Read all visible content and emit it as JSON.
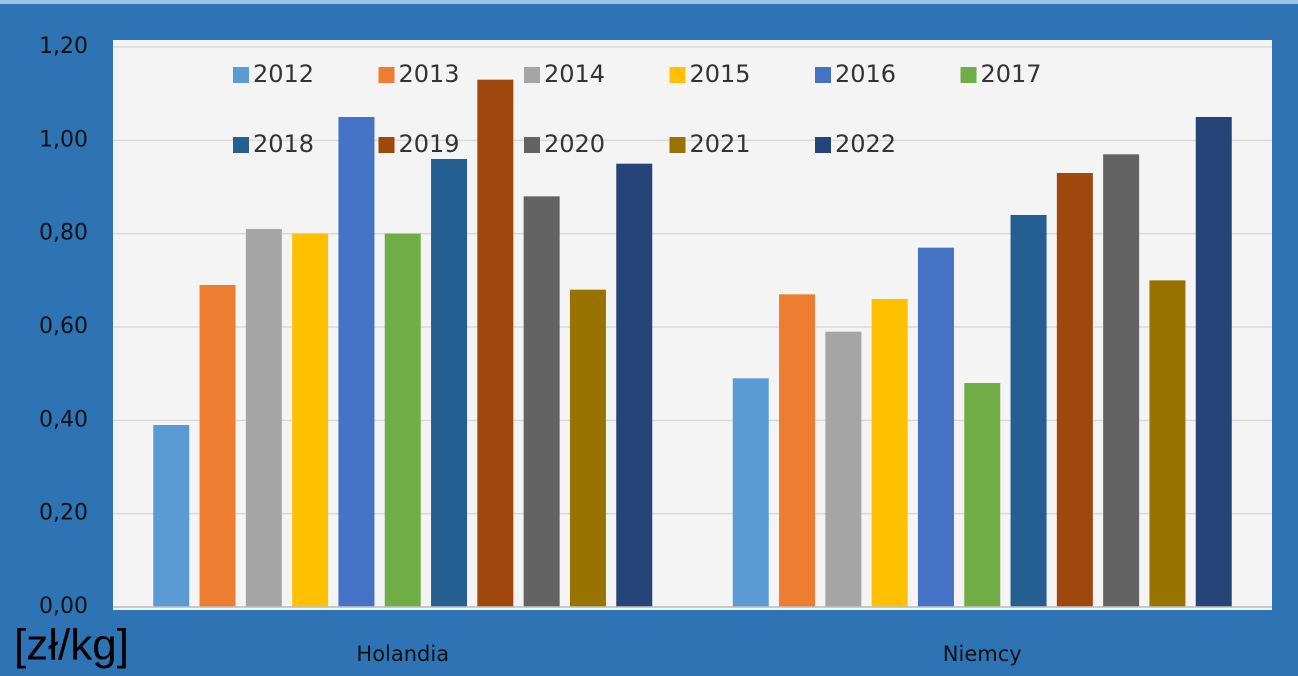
{
  "chart_data": {
    "type": "bar",
    "axis_label": "[zł/kg]",
    "categories": [
      "Holandia",
      "Niemcy"
    ],
    "series": [
      {
        "name": "2012",
        "color": "#5b9bd5",
        "values": [
          0.39,
          0.49
        ]
      },
      {
        "name": "2013",
        "color": "#ed7d31",
        "values": [
          0.69,
          0.67
        ]
      },
      {
        "name": "2014",
        "color": "#a5a5a5",
        "values": [
          0.81,
          0.59
        ]
      },
      {
        "name": "2015",
        "color": "#ffc000",
        "values": [
          0.8,
          0.66
        ]
      },
      {
        "name": "2016",
        "color": "#4472c4",
        "values": [
          1.05,
          0.77
        ]
      },
      {
        "name": "2017",
        "color": "#70ad47",
        "values": [
          0.8,
          0.48
        ]
      },
      {
        "name": "2018",
        "color": "#255e91",
        "values": [
          0.96,
          0.84
        ]
      },
      {
        "name": "2019",
        "color": "#9e480e",
        "values": [
          1.13,
          0.93
        ]
      },
      {
        "name": "2020",
        "color": "#636363",
        "values": [
          0.88,
          0.97
        ]
      },
      {
        "name": "2021",
        "color": "#997300",
        "values": [
          0.68,
          0.7
        ]
      },
      {
        "name": "2022",
        "color": "#264478",
        "values": [
          0.95,
          1.05
        ]
      }
    ],
    "ylim": [
      0,
      1.2
    ],
    "yticks": [
      {
        "value": 0,
        "label": "0,00"
      },
      {
        "value": 0.2,
        "label": "0,20"
      },
      {
        "value": 0.4,
        "label": "0,40"
      },
      {
        "value": 0.6,
        "label": "0,60"
      },
      {
        "value": 0.8,
        "label": "0,80"
      },
      {
        "value": 1.0,
        "label": "1,00"
      },
      {
        "value": 1.2,
        "label": "1,20"
      }
    ],
    "grid": true,
    "legend": "top"
  }
}
